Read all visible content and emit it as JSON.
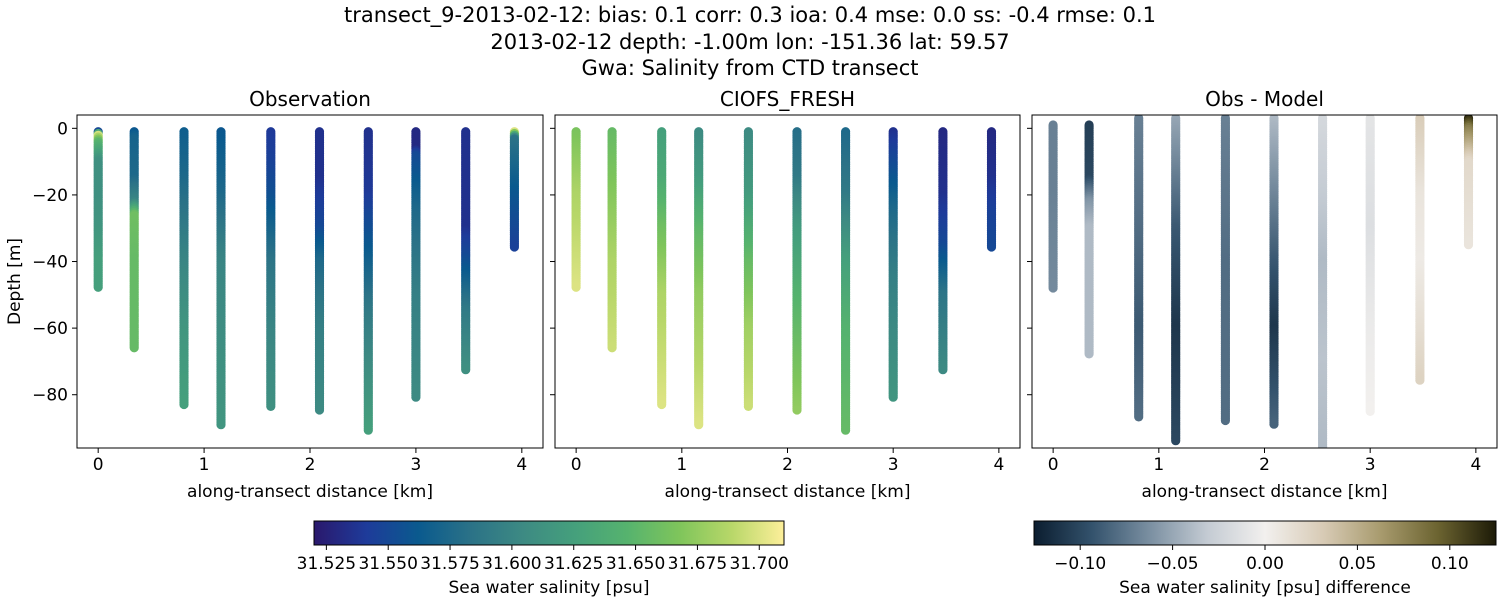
{
  "header": {
    "line1": "transect_9-2013-02-12: bias: 0.1  corr: 0.3  ioa: 0.4  mse: 0.0  ss: -0.4  rmse: 0.1",
    "line2": "2013-02-12 depth: -1.00m lon: -151.36 lat: 59.57",
    "line3": "Gwa: Salinity from CTD transect"
  },
  "chart_data": [
    {
      "type": "scatter",
      "title": "Observation",
      "xlabel": "along-transect distance [km]",
      "ylabel": "Depth [m]",
      "xlim": [
        -0.2,
        4.2
      ],
      "ylim": [
        -96,
        4
      ],
      "xticks": [
        0,
        1,
        2,
        3,
        4
      ],
      "yticks": [
        0,
        -20,
        -40,
        -60,
        -80
      ],
      "colormap": "haline",
      "casts": [
        {
          "x": 0.0,
          "depths": [
            -1,
            -48
          ],
          "profile": [
            [
              -1,
              31.55
            ],
            [
              -2,
              31.7
            ],
            [
              -4,
              31.65
            ],
            [
              -10,
              31.61
            ],
            [
              -20,
              31.61
            ],
            [
              -30,
              31.615
            ],
            [
              -40,
              31.625
            ],
            [
              -48,
              31.625
            ]
          ]
        },
        {
          "x": 0.34,
          "depths": [
            -1,
            -66
          ],
          "profile": [
            [
              -1,
              31.56
            ],
            [
              -3,
              31.57
            ],
            [
              -15,
              31.575
            ],
            [
              -22,
              31.6
            ],
            [
              -26,
              31.66
            ],
            [
              -40,
              31.655
            ],
            [
              -66,
              31.655
            ]
          ]
        },
        {
          "x": 0.81,
          "depths": [
            -1,
            -83
          ],
          "profile": [
            [
              -1,
              31.565
            ],
            [
              -15,
              31.575
            ],
            [
              -40,
              31.6
            ],
            [
              -60,
              31.615
            ],
            [
              -83,
              31.625
            ]
          ]
        },
        {
          "x": 1.16,
          "depths": [
            -1,
            -89
          ],
          "profile": [
            [
              -1,
              31.56
            ],
            [
              -20,
              31.575
            ],
            [
              -40,
              31.6
            ],
            [
              -70,
              31.61
            ],
            [
              -89,
              31.615
            ]
          ]
        },
        {
          "x": 1.63,
          "depths": [
            -1,
            -84
          ],
          "profile": [
            [
              -1,
              31.54
            ],
            [
              -10,
              31.545
            ],
            [
              -20,
              31.555
            ],
            [
              -40,
              31.585
            ],
            [
              -60,
              31.6
            ],
            [
              -84,
              31.61
            ]
          ]
        },
        {
          "x": 2.09,
          "depths": [
            -1,
            -85
          ],
          "profile": [
            [
              -1,
              31.535
            ],
            [
              -15,
              31.535
            ],
            [
              -30,
              31.55
            ],
            [
              -40,
              31.575
            ],
            [
              -60,
              31.595
            ],
            [
              -85,
              31.605
            ]
          ]
        },
        {
          "x": 2.55,
          "depths": [
            -1,
            -91
          ],
          "profile": [
            [
              -1,
              31.535
            ],
            [
              -20,
              31.54
            ],
            [
              -35,
              31.56
            ],
            [
              -55,
              31.59
            ],
            [
              -75,
              31.61
            ],
            [
              -91,
              31.625
            ]
          ]
        },
        {
          "x": 3.0,
          "depths": [
            -1,
            -81
          ],
          "profile": [
            [
              -1,
              31.53
            ],
            [
              -6,
              31.53
            ],
            [
              -8,
              31.55
            ],
            [
              -25,
              31.575
            ],
            [
              -50,
              31.595
            ],
            [
              -81,
              31.605
            ]
          ]
        },
        {
          "x": 3.47,
          "depths": [
            -1,
            -73
          ],
          "profile": [
            [
              -1,
              31.535
            ],
            [
              -15,
              31.535
            ],
            [
              -30,
              31.535
            ],
            [
              -38,
              31.55
            ],
            [
              -55,
              31.59
            ],
            [
              -73,
              31.61
            ]
          ]
        },
        {
          "x": 3.93,
          "depths": [
            -1,
            -36
          ],
          "profile": [
            [
              -1,
              31.7
            ],
            [
              -3,
              31.585
            ],
            [
              -20,
              31.56
            ],
            [
              -36,
              31.545
            ]
          ]
        }
      ]
    },
    {
      "type": "scatter",
      "title": "CIOFS_FRESH",
      "xlabel": "along-transect distance [km]",
      "xlim": [
        -0.2,
        4.2
      ],
      "ylim": [
        -96,
        4
      ],
      "xticks": [
        0,
        1,
        2,
        3,
        4
      ],
      "yticks": [
        0,
        -20,
        -40,
        -60,
        -80
      ],
      "colormap": "haline",
      "casts": [
        {
          "x": 0.0,
          "depths": [
            -1,
            -48
          ],
          "profile": [
            [
              -1,
              31.665
            ],
            [
              -20,
              31.685
            ],
            [
              -48,
              31.7
            ]
          ]
        },
        {
          "x": 0.34,
          "depths": [
            -1,
            -66
          ],
          "profile": [
            [
              -1,
              31.655
            ],
            [
              -20,
              31.67
            ],
            [
              -40,
              31.685
            ],
            [
              -66,
              31.695
            ]
          ]
        },
        {
          "x": 0.81,
          "depths": [
            -1,
            -83
          ],
          "profile": [
            [
              -1,
              31.625
            ],
            [
              -15,
              31.635
            ],
            [
              -30,
              31.66
            ],
            [
              -50,
              31.685
            ],
            [
              -83,
              31.7
            ]
          ]
        },
        {
          "x": 1.16,
          "depths": [
            -1,
            -89
          ],
          "profile": [
            [
              -1,
              31.605
            ],
            [
              -15,
              31.62
            ],
            [
              -30,
              31.65
            ],
            [
              -50,
              31.675
            ],
            [
              -89,
              31.7
            ]
          ]
        },
        {
          "x": 1.63,
          "depths": [
            -1,
            -84
          ],
          "profile": [
            [
              -1,
              31.605
            ],
            [
              -20,
              31.62
            ],
            [
              -40,
              31.655
            ],
            [
              -60,
              31.68
            ],
            [
              -84,
              31.695
            ]
          ]
        },
        {
          "x": 2.09,
          "depths": [
            -1,
            -85
          ],
          "profile": [
            [
              -1,
              31.58
            ],
            [
              -15,
              31.59
            ],
            [
              -30,
              31.62
            ],
            [
              -50,
              31.645
            ],
            [
              -85,
              31.675
            ]
          ]
        },
        {
          "x": 2.55,
          "depths": [
            -1,
            -91
          ],
          "profile": [
            [
              -1,
              31.575
            ],
            [
              -20,
              31.59
            ],
            [
              -40,
              31.625
            ],
            [
              -60,
              31.645
            ],
            [
              -91,
              31.655
            ]
          ]
        },
        {
          "x": 3.0,
          "depths": [
            -1,
            -81
          ],
          "profile": [
            [
              -1,
              31.535
            ],
            [
              -10,
              31.55
            ],
            [
              -25,
              31.575
            ],
            [
              -45,
              31.595
            ],
            [
              -81,
              31.615
            ]
          ]
        },
        {
          "x": 3.47,
          "depths": [
            -1,
            -73
          ],
          "profile": [
            [
              -1,
              31.53
            ],
            [
              -20,
              31.535
            ],
            [
              -35,
              31.55
            ],
            [
              -50,
              31.585
            ],
            [
              -73,
              31.605
            ]
          ]
        },
        {
          "x": 3.93,
          "depths": [
            -1,
            -36
          ],
          "profile": [
            [
              -1,
              31.53
            ],
            [
              -15,
              31.535
            ],
            [
              -25,
              31.545
            ],
            [
              -36,
              31.55
            ]
          ]
        }
      ]
    },
    {
      "type": "scatter",
      "title": "Obs - Model",
      "xlabel": "along-transect distance [km]",
      "xlim": [
        -0.2,
        4.2
      ],
      "ylim": [
        -96,
        4
      ],
      "xticks": [
        0,
        1,
        2,
        3,
        4
      ],
      "yticks": [
        0,
        -20,
        -40,
        -60,
        -80
      ],
      "colormap": "diff",
      "casts": [
        {
          "x": 0.0,
          "depths": [
            1,
            -48
          ],
          "profile": [
            [
              1,
              -0.07
            ],
            [
              -20,
              -0.07
            ],
            [
              -48,
              -0.065
            ]
          ]
        },
        {
          "x": 0.34,
          "depths": [
            1,
            -68
          ],
          "profile": [
            [
              1,
              -0.105
            ],
            [
              -15,
              -0.1
            ],
            [
              -22,
              -0.06
            ],
            [
              -30,
              -0.04
            ],
            [
              -68,
              -0.04
            ]
          ]
        },
        {
          "x": 0.81,
          "depths": [
            3,
            -87
          ],
          "profile": [
            [
              3,
              -0.07
            ],
            [
              -30,
              -0.08
            ],
            [
              -60,
              -0.09
            ],
            [
              -87,
              -0.08
            ]
          ]
        },
        {
          "x": 1.16,
          "depths": [
            3,
            -94
          ],
          "profile": [
            [
              3,
              -0.05
            ],
            [
              -30,
              -0.09
            ],
            [
              -60,
              -0.11
            ],
            [
              -94,
              -0.1
            ]
          ]
        },
        {
          "x": 1.63,
          "depths": [
            3,
            -88
          ],
          "profile": [
            [
              3,
              -0.07
            ],
            [
              -40,
              -0.08
            ],
            [
              -88,
              -0.08
            ]
          ]
        },
        {
          "x": 2.09,
          "depths": [
            3,
            -89
          ],
          "profile": [
            [
              3,
              -0.04
            ],
            [
              -40,
              -0.09
            ],
            [
              -60,
              -0.11
            ],
            [
              -89,
              -0.085
            ]
          ]
        },
        {
          "x": 2.55,
          "depths": [
            3,
            -96
          ],
          "profile": [
            [
              3,
              -0.02
            ],
            [
              -40,
              -0.04
            ],
            [
              -70,
              -0.035
            ],
            [
              -96,
              -0.04
            ]
          ]
        },
        {
          "x": 3.0,
          "depths": [
            3,
            -85
          ],
          "profile": [
            [
              3,
              -0.01
            ],
            [
              -30,
              -0.015
            ],
            [
              -60,
              -0.005
            ],
            [
              -85,
              0.0
            ]
          ]
        },
        {
          "x": 3.47,
          "depths": [
            3,
            -76
          ],
          "profile": [
            [
              3,
              0.03
            ],
            [
              -20,
              0.01
            ],
            [
              -40,
              0.005
            ],
            [
              -60,
              0.015
            ],
            [
              -76,
              0.025
            ]
          ]
        },
        {
          "x": 3.93,
          "depths": [
            3,
            -35
          ],
          "profile": [
            [
              3,
              0.12
            ],
            [
              0,
              0.08
            ],
            [
              -10,
              0.02
            ],
            [
              -35,
              0.01
            ]
          ]
        }
      ]
    }
  ],
  "colorbars": {
    "salinity": {
      "label": "Sea water salinity [psu]",
      "range": [
        31.52,
        31.71
      ],
      "ticks": [
        "31.525",
        "31.550",
        "31.575",
        "31.600",
        "31.625",
        "31.650",
        "31.675",
        "31.700"
      ],
      "tick_values": [
        31.525,
        31.55,
        31.575,
        31.6,
        31.625,
        31.65,
        31.675,
        31.7
      ]
    },
    "difference": {
      "label": "Sea water salinity [psu] difference",
      "range": [
        -0.125,
        0.125
      ],
      "ticks": [
        "−0.10",
        "−0.05",
        "0.00",
        "0.05",
        "0.10"
      ],
      "tick_values": [
        -0.1,
        -0.05,
        0.0,
        0.05,
        0.1
      ]
    }
  },
  "colors": {
    "haline": [
      "#2a186c",
      "#1e3b9a",
      "#0a5a8e",
      "#2b7287",
      "#3d8a83",
      "#45a07c",
      "#56b36e",
      "#7fc55b",
      "#b8d769",
      "#fdef9a"
    ],
    "diff": [
      "#0b1d2f",
      "#33526c",
      "#7a8fa1",
      "#c4cbd3",
      "#f2f0ee",
      "#d8cbb6",
      "#a89b6e",
      "#6b6330",
      "#1c1a07"
    ]
  }
}
